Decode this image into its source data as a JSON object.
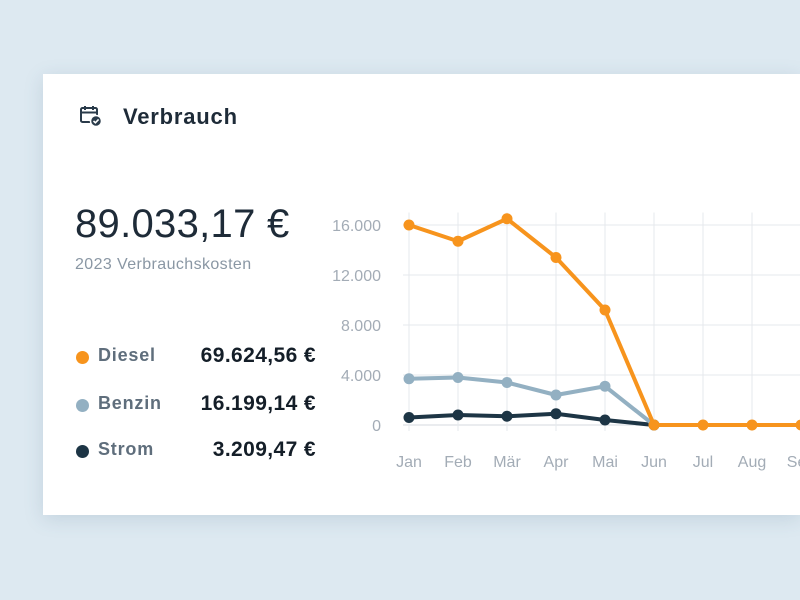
{
  "header": {
    "title": "Verbrauch",
    "icon": "calendar-check-icon"
  },
  "summary": {
    "total": "89.033,17 €",
    "subtitle": "2023 Verbrauchskosten"
  },
  "legend": [
    {
      "name": "Diesel",
      "value": "69.624,56 €",
      "color": "#f7941d"
    },
    {
      "name": "Benzin",
      "value": "16.199,14 €",
      "color": "#93b0c2"
    },
    {
      "name": "Strom",
      "value": "3.209,47 €",
      "color": "#1d3545"
    }
  ],
  "colors": {
    "background": "#dde9f1",
    "card": "#ffffff",
    "text": "#1e2b38",
    "muted": "#8a97a4",
    "grid": "#e6e9ec"
  },
  "chart_data": {
    "type": "line",
    "x": [
      "Jan",
      "Feb",
      "Mär",
      "Apr",
      "Mai",
      "Jun",
      "Jul",
      "Aug",
      "Sep"
    ],
    "y_ticks": [
      "0",
      "4.000",
      "8.000",
      "12.000",
      "16.000"
    ],
    "ylim": [
      0,
      17000
    ],
    "grid": true,
    "series": [
      {
        "name": "Diesel",
        "color": "#f7941d",
        "values": [
          16000,
          14700,
          16500,
          13400,
          9200,
          0,
          0,
          0,
          0
        ]
      },
      {
        "name": "Benzin",
        "color": "#93b0c2",
        "values": [
          3700,
          3800,
          3400,
          2400,
          3100,
          0,
          null,
          null,
          null
        ]
      },
      {
        "name": "Strom",
        "color": "#1d3545",
        "values": [
          600,
          800,
          700,
          900,
          400,
          0,
          null,
          null,
          null
        ]
      }
    ]
  }
}
